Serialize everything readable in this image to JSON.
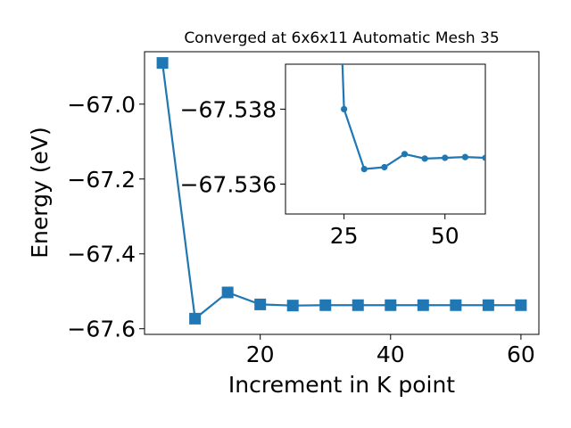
{
  "chart_data": [
    {
      "type": "line",
      "title": "Converged at 6x6x11 Automatic Mesh 35",
      "xlabel": "Increment in K point",
      "ylabel": "Energy (eV)",
      "xlim": [
        2.25,
        62.75
      ],
      "ylim": [
        -67.615,
        -66.86
      ],
      "x_ticks": [
        20,
        40,
        60
      ],
      "x_tick_labels": [
        "20",
        "40",
        "60"
      ],
      "y_ticks": [
        -67.6,
        -67.4,
        -67.2,
        -67.0
      ],
      "y_tick_labels": [
        "−67.6",
        "−67.4",
        "−67.2",
        "−67.0"
      ],
      "grid": false,
      "marker": "square",
      "color": "#1f77b4",
      "x": [
        5,
        10,
        15,
        20,
        25,
        30,
        35,
        40,
        45,
        50,
        55,
        60
      ],
      "y": [
        -66.89,
        -67.573,
        -67.503,
        -67.535,
        -67.538,
        -67.537,
        -67.537,
        -67.537,
        -67.537,
        -67.537,
        -67.537,
        -67.537
      ]
    },
    {
      "type": "line",
      "title": "",
      "xlabel": "",
      "ylabel": "",
      "xlim": [
        10.5,
        60
      ],
      "ylim": [
        -67.5352,
        -67.5392
      ],
      "x_ticks": [
        25,
        50
      ],
      "x_tick_labels": [
        "25",
        "50"
      ],
      "y_ticks": [
        -67.536,
        -67.538
      ],
      "y_tick_labels": [
        "−67.536",
        "−67.538"
      ],
      "grid": false,
      "marker": "circle",
      "color": "#1f77b4",
      "x": [
        24.5,
        25,
        30,
        35,
        40,
        45,
        50,
        55,
        60
      ],
      "y": [
        -67.5395,
        -67.538,
        -67.5364,
        -67.53645,
        -67.5368,
        -67.53668,
        -67.5367,
        -67.53672,
        -67.5367
      ]
    }
  ]
}
